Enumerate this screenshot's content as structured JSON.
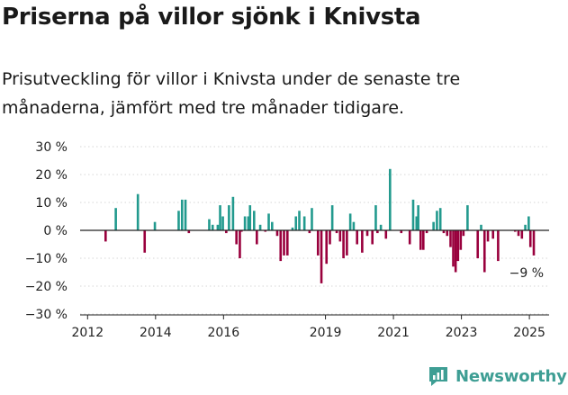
{
  "header": {
    "title": "Priserna på villor sjönk i Knivsta",
    "subtitle": "Prisutveckling för villor i Knivsta under de senaste tre månaderna, jämfört med tre månader tidigare."
  },
  "brand": {
    "name": "Newsworthy"
  },
  "colors": {
    "positive": "#229a8e",
    "negative": "#99003d",
    "grid": "#d6d6d6",
    "axis": "#222222"
  },
  "chart_data": {
    "type": "bar",
    "ylim": [
      -30,
      30
    ],
    "yticks": [
      30,
      20,
      10,
      0,
      -10,
      -20,
      -30
    ],
    "ytick_labels": [
      "30 %",
      "20 %",
      "10 %",
      "0 %",
      "−10 %",
      "−20 %",
      "−30 %"
    ],
    "xticks": [
      2012,
      2014,
      2016,
      2019,
      2021,
      2023,
      2025
    ],
    "xtick_labels": [
      "2012",
      "2014",
      "2016",
      "2019",
      "2021",
      "2023",
      "2025"
    ],
    "last_value_label": "−9 %",
    "series": [
      {
        "x": [
          2012.55,
          2012.85,
          2013.5,
          2013.7,
          2014.0,
          2014.7,
          2014.8,
          2014.9,
          2015.0,
          2015.6,
          2015.7,
          2015.85,
          2015.92,
          2016.0,
          2016.1,
          2016.18,
          2016.3,
          2016.4,
          2016.5,
          2016.55,
          2016.65,
          2016.75,
          2016.8,
          2016.92,
          2017.0,
          2017.1,
          2017.25,
          2017.35,
          2017.45,
          2017.6,
          2017.7,
          2017.8,
          2017.9,
          2018.05,
          2018.15,
          2018.25,
          2018.4,
          2018.55,
          2018.62,
          2018.8,
          2018.9,
          2019.05,
          2019.15,
          2019.22,
          2019.35,
          2019.45,
          2019.55,
          2019.65,
          2019.75,
          2019.85,
          2019.95,
          2020.1,
          2020.25,
          2020.4,
          2020.5,
          2020.55,
          2020.65,
          2020.8,
          2020.92,
          2021.25,
          2021.5,
          2021.6,
          2021.7,
          2021.75,
          2021.82,
          2021.9,
          2022.0,
          2022.2,
          2022.3,
          2022.4,
          2022.5,
          2022.6,
          2022.7,
          2022.78,
          2022.85,
          2022.92,
          2023.0,
          2023.08,
          2023.2,
          2023.5,
          2023.6,
          2023.7,
          2023.8,
          2023.95,
          2024.1,
          2024.6,
          2024.7,
          2024.8,
          2024.9,
          2025.0,
          2025.05,
          2025.15
        ],
        "y": [
          -4,
          8,
          13,
          -8,
          3,
          7,
          11,
          11,
          -1,
          4,
          2,
          2,
          9,
          5,
          -1,
          9,
          12,
          -5,
          -10,
          -0.5,
          5,
          5,
          9,
          7,
          -5,
          2,
          -0.5,
          6,
          3,
          -2,
          -11,
          -9,
          -9,
          1,
          5,
          7,
          5,
          -1,
          8,
          -9,
          -19,
          -12,
          -5,
          9,
          -1,
          -4,
          -10,
          -9,
          6,
          3,
          -5,
          -8,
          -2,
          -5,
          9,
          -1,
          2,
          -3,
          22,
          -1,
          -5,
          11,
          5,
          9,
          -7,
          -7,
          -1,
          3,
          7,
          8,
          -1,
          -2,
          -6,
          -13,
          -15,
          -11,
          -7,
          -2,
          9,
          -10,
          2,
          -15,
          -4,
          -3,
          -11,
          -0.5,
          -2,
          -3,
          2,
          5,
          -6,
          -9
        ],
        "labels": [
          "−4 %",
          "8 %",
          "13 %",
          "−8 %",
          "3 %",
          "7 %",
          "11 %",
          "11 %",
          "−1 %",
          "4 %",
          "2 %",
          "2 %",
          "9 %",
          "5 %",
          "−1 %",
          "9 %",
          "12 %",
          "−5 %",
          "−10 %",
          "−0.5 %",
          "5 %",
          "5 %",
          "9 %",
          "7 %",
          "−5 %",
          "2 %",
          "−0.5 %",
          "6 %",
          "3 %",
          "−2 %",
          "−11 %",
          "−9 %",
          "−9 %",
          "1 %",
          "5 %",
          "7 %",
          "5 %",
          "−1 %",
          "8 %",
          "−9 %",
          "−19 %",
          "−12 %",
          "−5 %",
          "9 %",
          "−1 %",
          "−4 %",
          "−10 %",
          "−9 %",
          "6 %",
          "3 %",
          "−5 %",
          "−8 %",
          "−2 %",
          "−5 %",
          "9 %",
          "−1 %",
          "2 %",
          "−3 %",
          "22 %",
          "−1 %",
          "−5 %",
          "11 %",
          "5 %",
          "9 %",
          "−7 %",
          "−7 %",
          "−1 %",
          "3 %",
          "7 %",
          "8 %",
          "−1 %",
          "−2 %",
          "−6 %",
          "−13 %",
          "−15 %",
          "−11 %",
          "−7 %",
          "−2 %",
          "9 %",
          "−10 %",
          "2 %",
          "−15 %",
          "−4 %",
          "−3 %",
          "−11 %",
          "−0.5 %",
          "−2 %",
          "−3 %",
          "2 %",
          "5 %",
          "−6 %",
          "−9 %"
        ]
      }
    ]
  }
}
